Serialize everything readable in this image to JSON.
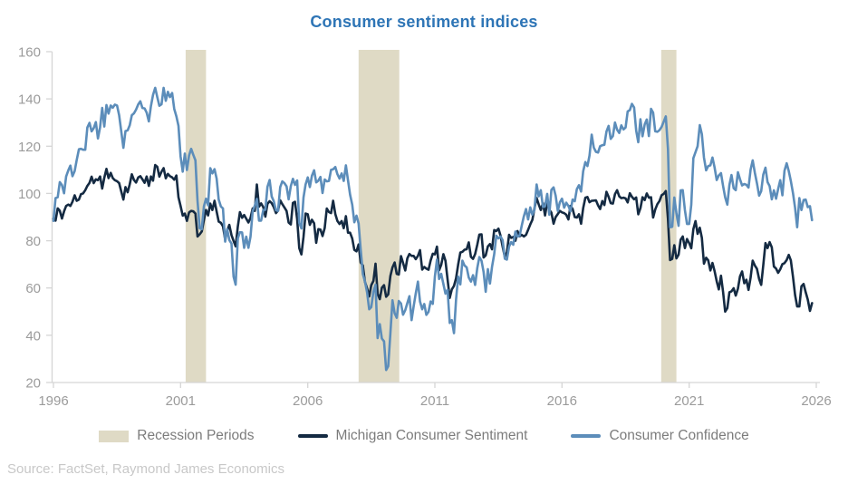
{
  "title": "Consumer sentiment indices",
  "source": "Source: FactSet, Raymond James Economics",
  "legend": [
    {
      "label": "Recession Periods",
      "type": "patch",
      "color": "#DFDAC5"
    },
    {
      "label": "Michigan Consumer Sentiment",
      "type": "line",
      "color": "#142A42"
    },
    {
      "label": "Consumer Confidence",
      "type": "line",
      "color": "#5C8DBA"
    }
  ],
  "colors": {
    "title": "#2E75B6",
    "michigan_line": "#142A42",
    "confidence_line": "#5C8DBA",
    "recession_band": "#DFDAC5",
    "axis": "#D5D5D5",
    "tick_label": "#9B9B9B",
    "legend_text": "#7C7C7C",
    "source_text": "#C8C8C8"
  },
  "chart_data": {
    "type": "line",
    "title": "Consumer sentiment indices",
    "xlabel": "",
    "ylabel": "",
    "xlim": [
      1996,
      2026
    ],
    "ylim": [
      20,
      160
    ],
    "x_ticks": [
      1996,
      2001,
      2006,
      2011,
      2016,
      2021,
      2026
    ],
    "y_ticks": [
      20,
      40,
      60,
      80,
      100,
      120,
      140,
      160
    ],
    "grid": false,
    "legend_position": "bottom",
    "x_start": 1996.0,
    "x_step_months": 1,
    "recession_color": "#DFDAC5",
    "recessions": [
      {
        "start": 2001.2,
        "end": 2002.0
      },
      {
        "start": 2008.0,
        "end": 2009.6
      },
      {
        "start": 2019.9,
        "end": 2020.5
      }
    ],
    "series": [
      {
        "name": "Michigan Consumer Sentiment",
        "color": "#142A42",
        "values": [
          89.3,
          88.5,
          93.7,
          92.7,
          89.4,
          92.4,
          94.7,
          95.3,
          94.7,
          96.5,
          99.2,
          96.9,
          97.4,
          99.7,
          100.0,
          101.4,
          103.2,
          104.5,
          107.1,
          104.4,
          106.0,
          105.6,
          107.2,
          102.1,
          106.6,
          110.4,
          106.5,
          108.7,
          106.5,
          105.6,
          105.2,
          104.4,
          100.9,
          97.4,
          102.7,
          100.5,
          103.9,
          108.1,
          105.7,
          104.6,
          106.8,
          107.3,
          106.0,
          104.5,
          107.2,
          103.2,
          107.2,
          105.4,
          112.0,
          111.3,
          107.1,
          109.2,
          110.7,
          106.4,
          108.3,
          107.3,
          106.8,
          105.8,
          107.6,
          98.4,
          94.7,
          90.6,
          91.5,
          88.4,
          92.0,
          92.6,
          92.4,
          91.5,
          81.8,
          82.7,
          83.9,
          88.8,
          93.0,
          90.7,
          95.7,
          93.0,
          96.9,
          92.4,
          88.1,
          87.6,
          86.1,
          80.6,
          84.2,
          86.7,
          82.4,
          79.9,
          77.6,
          86.0,
          92.1,
          89.7,
          90.9,
          89.3,
          87.7,
          89.6,
          93.7,
          92.6,
          103.8,
          94.4,
          95.8,
          94.2,
          90.2,
          95.6,
          96.7,
          95.9,
          94.2,
          91.7,
          92.8,
          97.1,
          95.5,
          94.1,
          92.6,
          87.7,
          86.9,
          96.0,
          96.5,
          89.1,
          76.9,
          74.2,
          81.6,
          91.5,
          91.2,
          86.7,
          88.9,
          87.4,
          79.1,
          84.9,
          84.7,
          82.0,
          85.4,
          93.6,
          92.1,
          91.7,
          96.9,
          91.3,
          88.4,
          87.1,
          88.3,
          85.3,
          90.4,
          83.4,
          83.4,
          80.9,
          76.1,
          75.5,
          78.4,
          70.8,
          69.5,
          62.6,
          59.8,
          56.4,
          61.2,
          63.0,
          70.3,
          57.6,
          55.3,
          60.1,
          61.2,
          56.3,
          57.3,
          65.1,
          68.7,
          70.8,
          66.0,
          65.7,
          73.5,
          70.6,
          67.4,
          72.5,
          74.4,
          73.6,
          73.6,
          72.2,
          73.6,
          76.0,
          67.8,
          68.9,
          68.2,
          67.7,
          71.6,
          74.5,
          74.2,
          77.5,
          67.5,
          69.8,
          74.3,
          71.5,
          63.7,
          55.8,
          59.4,
          60.9,
          64.1,
          69.9,
          75.0,
          75.3,
          76.2,
          76.4,
          79.3,
          73.2,
          72.3,
          74.3,
          78.3,
          82.6,
          82.7,
          72.9,
          73.8,
          77.6,
          78.6,
          76.4,
          84.5,
          84.1,
          85.1,
          82.1,
          77.5,
          73.2,
          75.1,
          82.5,
          81.2,
          81.6,
          80.0,
          84.1,
          81.9,
          82.5,
          81.8,
          82.5,
          84.6,
          86.9,
          88.8,
          93.6,
          98.1,
          95.4,
          93.0,
          95.9,
          90.7,
          96.1,
          93.1,
          91.9,
          87.2,
          90.0,
          91.3,
          92.6,
          92.0,
          91.7,
          91.0,
          89.0,
          94.7,
          93.5,
          90.0,
          89.8,
          91.2,
          87.2,
          93.8,
          98.2,
          98.5,
          96.3,
          96.9,
          97.0,
          97.1,
          95.0,
          93.4,
          96.8,
          95.1,
          100.7,
          98.5,
          95.9,
          95.7,
          99.7,
          101.4,
          98.8,
          98.0,
          98.2,
          97.9,
          96.2,
          100.1,
          98.6,
          97.5,
          98.3,
          91.2,
          93.8,
          98.4,
          97.2,
          100.0,
          98.2,
          98.4,
          89.8,
          93.2,
          95.5,
          96.8,
          99.3,
          99.8,
          101.0,
          89.1,
          71.8,
          72.3,
          78.1,
          72.5,
          74.1,
          80.4,
          81.8,
          76.9,
          80.7,
          79.0,
          76.8,
          84.9,
          88.3,
          82.9,
          85.5,
          81.2,
          70.3,
          72.8,
          71.7,
          67.4,
          70.6,
          67.2,
          62.8,
          59.4,
          65.2,
          58.4,
          50.0,
          51.5,
          58.2,
          58.6,
          59.9,
          56.8,
          59.7,
          64.9,
          67.0,
          62.0,
          63.5,
          59.2,
          64.4,
          71.6,
          69.5,
          68.1,
          63.8,
          61.3,
          69.7,
          79.0,
          76.9,
          79.4,
          77.2,
          69.1,
          68.2,
          66.4,
          67.9,
          70.1,
          70.5,
          71.8,
          74.0,
          71.7,
          64.7,
          57.0,
          52.2,
          52.2,
          60.7,
          61.7,
          58.2,
          55.1,
          50.3,
          53.6
        ]
      },
      {
        "name": "Consumer Confidence",
        "color": "#5C8DBA",
        "values": [
          88.4,
          98.0,
          98.4,
          104.8,
          103.5,
          100.1,
          107.2,
          109.8,
          111.8,
          107.3,
          109.5,
          114.2,
          118.7,
          118.9,
          118.5,
          118.5,
          127.9,
          129.9,
          126.3,
          127.6,
          130.2,
          123.3,
          128.1,
          136.2,
          128.3,
          137.4,
          133.8,
          137.2,
          136.3,
          137.6,
          137.2,
          133.1,
          126.4,
          119.3,
          126.4,
          126.7,
          128.9,
          133.1,
          133.9,
          135.5,
          137.7,
          139.0,
          136.2,
          136.0,
          134.2,
          130.5,
          137.0,
          141.7,
          144.7,
          140.8,
          137.1,
          137.7,
          144.7,
          139.2,
          143.0,
          140.8,
          142.5,
          135.8,
          132.6,
          128.6,
          115.7,
          109.2,
          116.9,
          109.9,
          116.1,
          118.9,
          116.3,
          114.0,
          97.0,
          85.3,
          84.9,
          94.6,
          97.8,
          95.0,
          110.7,
          108.5,
          110.3,
          106.3,
          97.4,
          94.5,
          93.7,
          79.6,
          84.9,
          80.3,
          78.8,
          64.8,
          61.4,
          81.0,
          83.6,
          83.5,
          77.0,
          81.7,
          77.0,
          81.7,
          92.5,
          94.8,
          97.7,
          88.5,
          88.5,
          93.0,
          93.1,
          102.8,
          105.7,
          98.7,
          96.7,
          92.9,
          92.6,
          102.7,
          105.1,
          104.4,
          103.0,
          97.5,
          103.1,
          106.2,
          103.6,
          105.5,
          87.5,
          85.2,
          98.3,
          103.8,
          106.8,
          102.7,
          107.5,
          109.8,
          104.7,
          105.4,
          107.0,
          100.2,
          105.9,
          105.1,
          105.3,
          110.0,
          110.2,
          111.2,
          108.2,
          106.3,
          108.5,
          105.3,
          111.9,
          105.6,
          99.5,
          95.2,
          87.8,
          90.6,
          87.3,
          76.4,
          65.9,
          62.8,
          58.1,
          51.0,
          51.9,
          58.5,
          61.4,
          38.8,
          44.7,
          38.6,
          37.4,
          25.3,
          26.9,
          40.8,
          54.8,
          49.3,
          47.4,
          54.5,
          53.4,
          48.7,
          50.6,
          53.6,
          56.5,
          46.4,
          52.3,
          57.7,
          62.7,
          54.3,
          51.0,
          53.2,
          48.6,
          49.9,
          54.3,
          53.3,
          64.8,
          72.0,
          63.8,
          66.0,
          61.7,
          57.6,
          59.2,
          45.2,
          46.4,
          40.9,
          55.2,
          64.8,
          61.5,
          71.6,
          69.5,
          68.7,
          64.4,
          62.7,
          65.4,
          61.3,
          68.4,
          73.1,
          71.5,
          66.7,
          58.4,
          68.0,
          61.9,
          69.0,
          74.3,
          82.1,
          81.0,
          81.8,
          80.2,
          72.4,
          72.0,
          77.5,
          79.4,
          78.3,
          83.9,
          81.7,
          82.2,
          86.4,
          90.3,
          93.4,
          89.0,
          94.1,
          91.0,
          93.1,
          103.8,
          98.8,
          101.4,
          94.3,
          94.6,
          99.8,
          91.0,
          101.5,
          102.6,
          99.1,
          92.6,
          96.3,
          97.8,
          94.0,
          96.1,
          94.7,
          92.4,
          97.4,
          96.7,
          101.8,
          103.5,
          100.8,
          109.4,
          113.3,
          111.6,
          116.1,
          124.9,
          119.4,
          117.6,
          117.3,
          120.0,
          120.4,
          120.6,
          126.2,
          128.6,
          123.1,
          124.3,
          130.0,
          127.0,
          125.6,
          128.8,
          127.1,
          127.9,
          134.7,
          135.3,
          137.9,
          136.4,
          126.6,
          121.7,
          131.4,
          124.2,
          129.2,
          131.3,
          124.3,
          135.8,
          134.2,
          126.3,
          126.1,
          126.8,
          128.2,
          130.4,
          132.6,
          118.8,
          85.7,
          85.9,
          98.3,
          91.7,
          86.3,
          101.3,
          101.4,
          92.9,
          87.1,
          87.1,
          95.2,
          114.9,
          117.5,
          120.0,
          128.9,
          125.1,
          115.2,
          109.8,
          111.6,
          111.9,
          115.2,
          111.1,
          105.7,
          107.6,
          108.6,
          103.2,
          98.4,
          95.3,
          103.6,
          107.8,
          102.2,
          101.4,
          109.0,
          106.0,
          103.4,
          104.0,
          103.7,
          102.5,
          110.1,
          114.0,
          108.7,
          104.3,
          99.1,
          101.0,
          108.0,
          110.9,
          104.8,
          103.1,
          97.5,
          101.3,
          97.8,
          101.9,
          105.6,
          99.2,
          109.6,
          112.8,
          109.5,
          105.3,
          100.1,
          93.9,
          85.7,
          98.0,
          93.0,
          97.2,
          97.4,
          94.2,
          94.6,
          88.7
        ]
      }
    ]
  }
}
